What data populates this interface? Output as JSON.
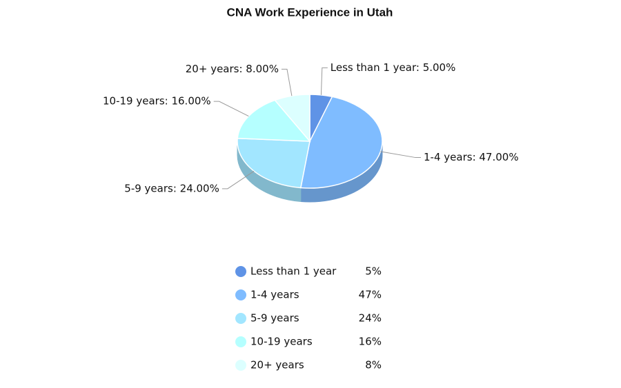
{
  "chart_data": {
    "type": "pie",
    "title": "CNA Work Experience in Utah",
    "categories": [
      "Less than 1 year",
      "1-4 years",
      "5-9 years",
      "10-19 years",
      "20+ years"
    ],
    "values": [
      5,
      47,
      24,
      16,
      8
    ],
    "data_labels": [
      "Less than 1 year: 5.00%",
      "1-4 years: 47.00%",
      "5-9 years: 24.00%",
      "10-19 years: 16.00%",
      "20+ years: 8.00%"
    ],
    "legend_value_labels": [
      "5%",
      "47%",
      "24%",
      "16%",
      "8%"
    ],
    "colors": [
      "#5f93e6",
      "#7fbcff",
      "#a2e6ff",
      "#b5ffff",
      "#dcffff"
    ]
  }
}
